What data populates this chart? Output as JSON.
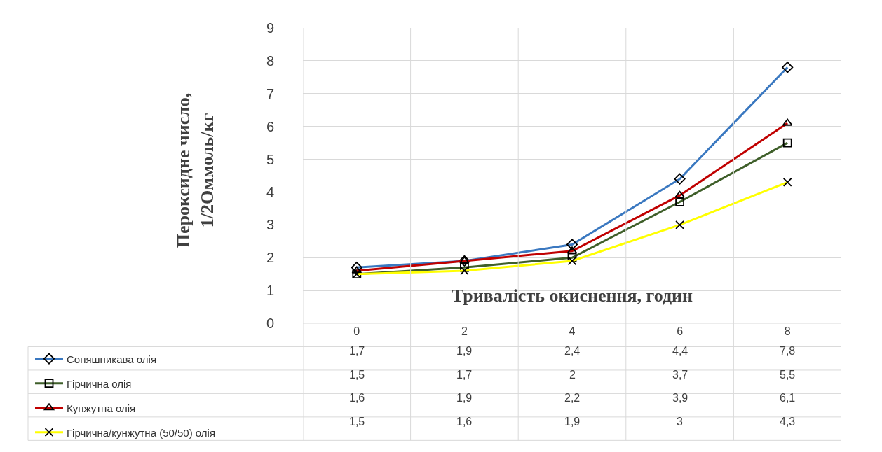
{
  "chart_data": {
    "type": "line",
    "xlabel": "Тривалість окиснення, годин",
    "ylabel": "Пероксидне число, 1/2Оммоль/кг",
    "categories": [
      "0",
      "2",
      "4",
      "6",
      "8"
    ],
    "series": [
      {
        "name": "Соняшникава олія",
        "color": "#3a78c0",
        "marker": "diamond",
        "values": [
          1.7,
          1.9,
          2.4,
          4.4,
          7.8
        ],
        "value_labels": [
          "1,7",
          "1,9",
          "2,4",
          "4,4",
          "7,8"
        ]
      },
      {
        "name": "Гірчична олія",
        "color": "#3f5f2a",
        "marker": "square",
        "values": [
          1.5,
          1.7,
          2,
          3.7,
          5.5
        ],
        "value_labels": [
          "1,5",
          "1,7",
          "2",
          "3,7",
          "5,5"
        ]
      },
      {
        "name": "Кунжутна олія",
        "color": "#c00000",
        "marker": "triangle",
        "values": [
          1.6,
          1.9,
          2.2,
          3.9,
          6.1
        ],
        "value_labels": [
          "1,6",
          "1,9",
          "2,2",
          "3,9",
          "6,1"
        ]
      },
      {
        "name": "Гірчична/кунжутна (50/50) олія",
        "color": "#ffff00",
        "marker": "cross",
        "values": [
          1.5,
          1.6,
          1.9,
          3,
          4.3
        ],
        "value_labels": [
          "1,5",
          "1,6",
          "1,9",
          "3",
          "4,3"
        ]
      }
    ],
    "ylim": [
      0,
      9
    ],
    "yticks": [
      0,
      1,
      2,
      3,
      4,
      5,
      6,
      7,
      8,
      9
    ],
    "grid": true,
    "legend": "bottom left"
  }
}
